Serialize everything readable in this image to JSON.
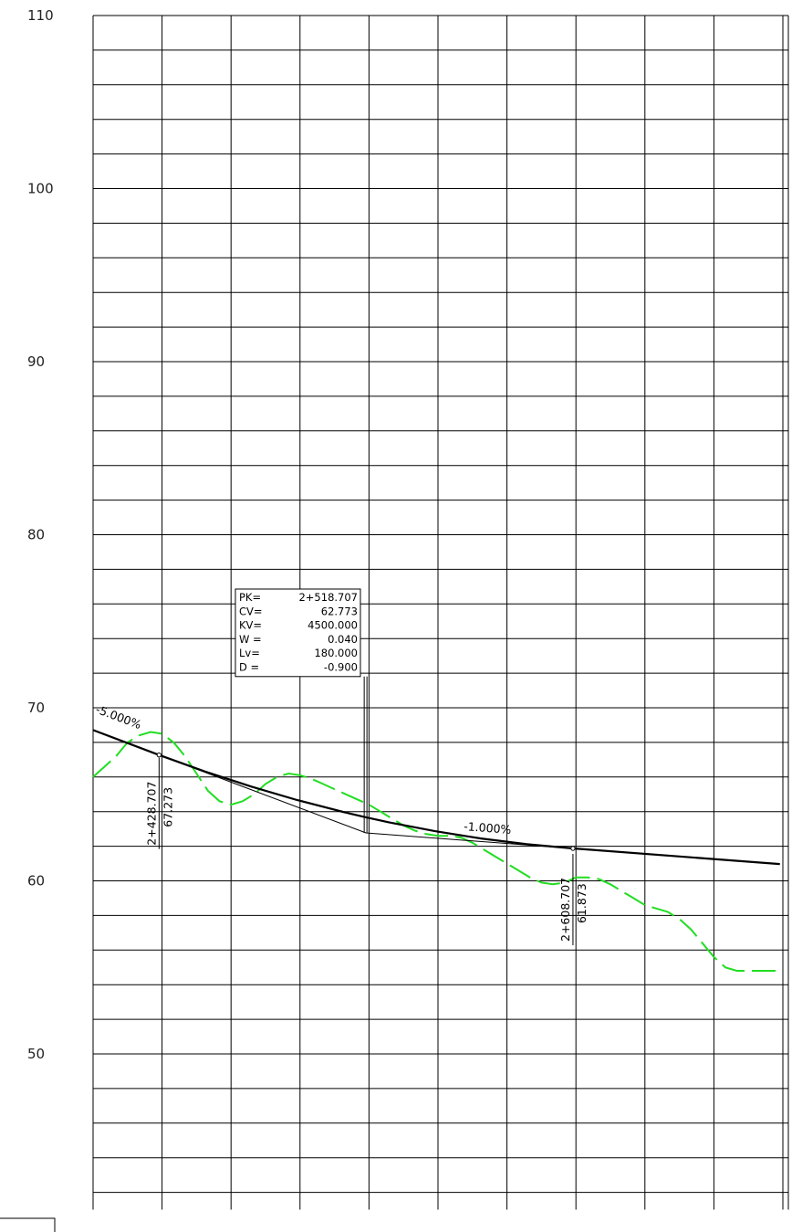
{
  "chart_data": {
    "type": "line",
    "title": "",
    "xlabel": "",
    "ylabel": "",
    "xlim": [
      2400,
      2700
    ],
    "ylim": [
      41,
      110
    ],
    "y_ticks": [
      110,
      100,
      90,
      80,
      70,
      60,
      50
    ],
    "grid": true,
    "series": [
      {
        "role": "terrain",
        "style": "dashed",
        "color": "#22dd22",
        "x": [
          2400,
          2410,
          2415,
          2420,
          2425,
          2430,
          2435,
          2440,
          2445,
          2450,
          2455,
          2460,
          2465,
          2470,
          2475,
          2480,
          2485,
          2490,
          2495,
          2500,
          2505,
          2510,
          2515,
          2520,
          2525,
          2530,
          2535,
          2540,
          2545,
          2550,
          2555,
          2560,
          2565,
          2570,
          2575,
          2580,
          2585,
          2590,
          2595,
          2600,
          2605,
          2610,
          2615,
          2620,
          2625,
          2630,
          2635,
          2640,
          2645,
          2650,
          2655,
          2660,
          2665,
          2670,
          2675,
          2680,
          2685,
          2690,
          2695,
          2700
        ],
        "y": [
          66.0,
          67.2,
          68.0,
          68.4,
          68.6,
          68.5,
          68.0,
          67.2,
          66.2,
          65.2,
          64.6,
          64.4,
          64.6,
          65.0,
          65.6,
          66.0,
          66.2,
          66.1,
          65.9,
          65.6,
          65.3,
          65.0,
          64.7,
          64.4,
          64.0,
          63.6,
          63.2,
          62.9,
          62.7,
          62.6,
          62.6,
          62.5,
          62.2,
          61.8,
          61.4,
          61.0,
          60.6,
          60.2,
          59.9,
          59.8,
          59.9,
          60.2,
          60.2,
          60.1,
          59.8,
          59.4,
          59.0,
          58.6,
          58.4,
          58.2,
          57.8,
          57.2,
          56.4,
          55.6,
          55.0,
          54.8,
          54.8,
          54.8,
          54.8,
          54.8
        ]
      },
      {
        "role": "vertical-curve",
        "style": "solid",
        "color": "#000000",
        "x": [
          2400,
          2428.707,
          2448.707,
          2468.707,
          2488.707,
          2508.707,
          2518.707,
          2528.707,
          2548.707,
          2568.707,
          2588.707,
          2608.707,
          2698.707
        ],
        "y": [
          68.71,
          67.273,
          66.317,
          65.45,
          64.672,
          63.984,
          63.673,
          63.384,
          62.873,
          62.451,
          62.118,
          61.873,
          60.973
        ]
      },
      {
        "role": "tangents",
        "style": "thin",
        "color": "#000000",
        "x": [
          2428.707,
          2518.707,
          2608.707
        ],
        "y": [
          67.273,
          62.773,
          61.873
        ]
      }
    ],
    "annotations": {
      "grade_in": "-5.000%",
      "grade_out": "-1.000%",
      "bvc": {
        "x": 2428.707,
        "y": 67.273,
        "station_label": "2+428.707",
        "elev_label": "67.273"
      },
      "evc": {
        "x": 2608.707,
        "y": 61.873,
        "station_label": "2+608.707",
        "elev_label": "61.873"
      },
      "pvi": {
        "x": 2518.707,
        "y": 62.773
      },
      "curve_box": [
        {
          "key": "PK=",
          "value": "2+518.707"
        },
        {
          "key": "CV=",
          "value": "62.773"
        },
        {
          "key": "KV=",
          "value": "4500.000"
        },
        {
          "key": "W =",
          "value": "0.040"
        },
        {
          "key": "Lv=",
          "value": "180.000"
        },
        {
          "key": "D =",
          "value": "-0.900"
        }
      ]
    }
  }
}
